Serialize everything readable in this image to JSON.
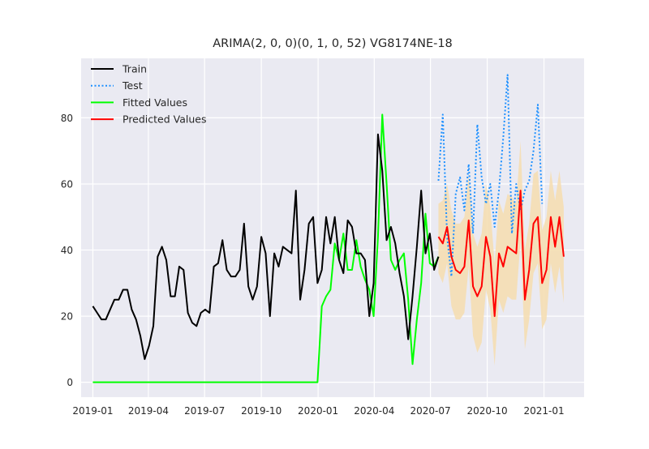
{
  "chart_data": {
    "type": "line",
    "title": "ARIMA(2, 0, 0)(0, 1, 0, 52) VG8174NE-18",
    "xlabel": "",
    "ylabel": "",
    "x_axis_type": "date",
    "xlim": [
      "2018-12-13",
      "2021-03-07"
    ],
    "ylim": [
      -4.5,
      98
    ],
    "x_ticks": [
      "2019-01-01",
      "2019-04-01",
      "2019-07-01",
      "2019-10-01",
      "2020-01-01",
      "2020-04-01",
      "2020-07-01",
      "2020-10-01",
      "2021-01-01"
    ],
    "x_tick_labels": [
      "2019-01",
      "2019-04",
      "2019-07",
      "2019-10",
      "2020-01",
      "2020-04",
      "2020-07",
      "2020-10",
      "2021-01"
    ],
    "y_ticks": [
      0,
      20,
      40,
      60,
      80
    ],
    "y_tick_labels": [
      "0",
      "20",
      "40",
      "60",
      "80"
    ],
    "grid": true,
    "background": "#eaeaf2",
    "legend_position": "top-left",
    "legend": [
      {
        "label": "Train",
        "color": "#000000",
        "style": "solid"
      },
      {
        "label": "Test",
        "color": "#1e90ff",
        "style": "dotted"
      },
      {
        "label": "Fitted Values",
        "color": "#00ff00",
        "style": "solid"
      },
      {
        "label": "Predicted Values",
        "color": "#ff0000",
        "style": "solid"
      }
    ],
    "series": [
      {
        "name": "Train",
        "color": "#000000",
        "style": "solid",
        "x": [
          "2019-01-01",
          "2019-01-08",
          "2019-01-15",
          "2019-01-22",
          "2019-01-29",
          "2019-02-05",
          "2019-02-12",
          "2019-02-19",
          "2019-02-26",
          "2019-03-05",
          "2019-03-12",
          "2019-03-19",
          "2019-03-26",
          "2019-04-02",
          "2019-04-09",
          "2019-04-16",
          "2019-04-23",
          "2019-04-30",
          "2019-05-07",
          "2019-05-14",
          "2019-05-21",
          "2019-05-28",
          "2019-06-04",
          "2019-06-11",
          "2019-06-18",
          "2019-06-25",
          "2019-07-02",
          "2019-07-09",
          "2019-07-16",
          "2019-07-23",
          "2019-07-30",
          "2019-08-06",
          "2019-08-13",
          "2019-08-20",
          "2019-08-27",
          "2019-09-03",
          "2019-09-10",
          "2019-09-17",
          "2019-09-24",
          "2019-10-01",
          "2019-10-08",
          "2019-10-15",
          "2019-10-22",
          "2019-10-29",
          "2019-11-05",
          "2019-11-12",
          "2019-11-19",
          "2019-11-26",
          "2019-12-03",
          "2019-12-10",
          "2019-12-17",
          "2019-12-24",
          "2019-12-31",
          "2020-01-07",
          "2020-01-14",
          "2020-01-21",
          "2020-01-28",
          "2020-02-04",
          "2020-02-11",
          "2020-02-18",
          "2020-02-25",
          "2020-03-03",
          "2020-03-10",
          "2020-03-17",
          "2020-03-24",
          "2020-03-31",
          "2020-04-07",
          "2020-04-14",
          "2020-04-21",
          "2020-04-28",
          "2020-05-05",
          "2020-05-12",
          "2020-05-19",
          "2020-05-26",
          "2020-06-02",
          "2020-06-09",
          "2020-06-16",
          "2020-06-23",
          "2020-06-30",
          "2020-07-07",
          "2020-07-14"
        ],
        "y": [
          23,
          21,
          19,
          19,
          22,
          25,
          25,
          28,
          28,
          22,
          19,
          14,
          7,
          11,
          17,
          38,
          41,
          37,
          26,
          26,
          35,
          34,
          21,
          18,
          17,
          21,
          22,
          21,
          35,
          36,
          43,
          34,
          32,
          32,
          34,
          48,
          29,
          25,
          29,
          44,
          39,
          20,
          39,
          35,
          41,
          40,
          39,
          58,
          25,
          34,
          48,
          50,
          30,
          34,
          50,
          42,
          50,
          37,
          33,
          49,
          47,
          39,
          39,
          37,
          20,
          30,
          75,
          64,
          43,
          47,
          42,
          33,
          26,
          13,
          26,
          41,
          58,
          39,
          45,
          34,
          38
        ]
      },
      {
        "name": "Test",
        "color": "#1e90ff",
        "style": "dotted",
        "x": [
          "2020-07-14",
          "2020-07-21",
          "2020-07-28",
          "2020-08-04",
          "2020-08-11",
          "2020-08-18",
          "2020-08-25",
          "2020-09-01",
          "2020-09-08",
          "2020-09-15",
          "2020-09-22",
          "2020-09-29",
          "2020-10-06",
          "2020-10-13",
          "2020-10-20",
          "2020-10-27",
          "2020-11-03",
          "2020-11-10",
          "2020-11-17",
          "2020-11-24",
          "2020-12-01",
          "2020-12-08",
          "2020-12-15",
          "2020-12-22",
          "2020-12-29"
        ],
        "y": [
          61,
          81,
          44,
          32,
          57,
          62,
          52,
          66,
          45,
          78,
          62,
          54,
          60,
          47,
          58,
          74,
          93,
          45,
          60,
          52,
          58,
          61,
          70,
          84,
          54
        ]
      },
      {
        "name": "Fitted Values",
        "color": "#00ff00",
        "style": "solid",
        "x": [
          "2019-01-01",
          "2019-12-31",
          "2020-01-07",
          "2020-01-14",
          "2020-01-21",
          "2020-01-28",
          "2020-02-04",
          "2020-02-11",
          "2020-02-18",
          "2020-02-25",
          "2020-03-03",
          "2020-03-10",
          "2020-03-17",
          "2020-03-24",
          "2020-03-31",
          "2020-04-07",
          "2020-04-14",
          "2020-04-21",
          "2020-04-28",
          "2020-05-05",
          "2020-05-12",
          "2020-05-19",
          "2020-05-26",
          "2020-06-02",
          "2020-06-09",
          "2020-06-16",
          "2020-06-23",
          "2020-06-30",
          "2020-07-07",
          "2020-07-14"
        ],
        "y": [
          0,
          0,
          23,
          26,
          28,
          42,
          37,
          45,
          34,
          34,
          43,
          35,
          31,
          28,
          20,
          44,
          81,
          60,
          37,
          34,
          37,
          39,
          25,
          5.5,
          19,
          30,
          51,
          36,
          35,
          38
        ]
      },
      {
        "name": "Predicted Values",
        "color": "#ff0000",
        "style": "solid",
        "x": [
          "2020-07-14",
          "2020-07-21",
          "2020-07-28",
          "2020-08-04",
          "2020-08-11",
          "2020-08-18",
          "2020-08-25",
          "2020-09-01",
          "2020-09-08",
          "2020-09-15",
          "2020-09-22",
          "2020-09-29",
          "2020-10-06",
          "2020-10-13",
          "2020-10-20",
          "2020-10-27",
          "2020-11-03",
          "2020-11-10",
          "2020-11-17",
          "2020-11-24",
          "2020-12-01",
          "2020-12-08",
          "2020-12-15",
          "2020-12-22",
          "2020-12-29",
          "2021-01-05",
          "2021-01-12",
          "2021-01-19",
          "2021-01-26",
          "2021-02-02"
        ],
        "y": [
          44,
          42,
          47,
          38,
          34,
          33,
          35,
          49,
          29,
          26,
          29,
          44,
          38,
          20,
          39,
          35,
          41,
          40,
          39,
          58,
          25,
          34,
          48,
          50,
          30,
          34,
          50,
          41,
          50,
          38
        ]
      }
    ],
    "confidence_band": {
      "color": "#f5deb3",
      "x": [
        "2020-07-14",
        "2020-07-21",
        "2020-07-28",
        "2020-08-04",
        "2020-08-11",
        "2020-08-18",
        "2020-08-25",
        "2020-09-01",
        "2020-09-08",
        "2020-09-15",
        "2020-09-22",
        "2020-09-29",
        "2020-10-06",
        "2020-10-13",
        "2020-10-20",
        "2020-10-27",
        "2020-11-03",
        "2020-11-10",
        "2020-11-17",
        "2020-11-24",
        "2020-12-01",
        "2020-12-08",
        "2020-12-15",
        "2020-12-22",
        "2020-12-29",
        "2021-01-05",
        "2021-01-12",
        "2021-01-19",
        "2021-01-26",
        "2021-02-02"
      ],
      "lower": [
        33,
        30,
        36,
        23,
        19,
        19,
        21,
        35,
        14,
        9,
        12,
        28,
        22,
        5,
        25,
        21,
        26,
        25,
        25,
        43,
        10,
        19,
        33,
        36,
        16,
        19,
        36,
        27,
        35,
        24
      ],
      "upper": [
        54,
        55,
        60,
        52,
        48,
        48,
        50,
        63,
        45,
        41,
        45,
        60,
        53,
        36,
        55,
        51,
        57,
        56,
        54,
        73,
        40,
        48,
        63,
        64,
        46,
        50,
        64,
        55,
        64,
        53
      ]
    }
  }
}
